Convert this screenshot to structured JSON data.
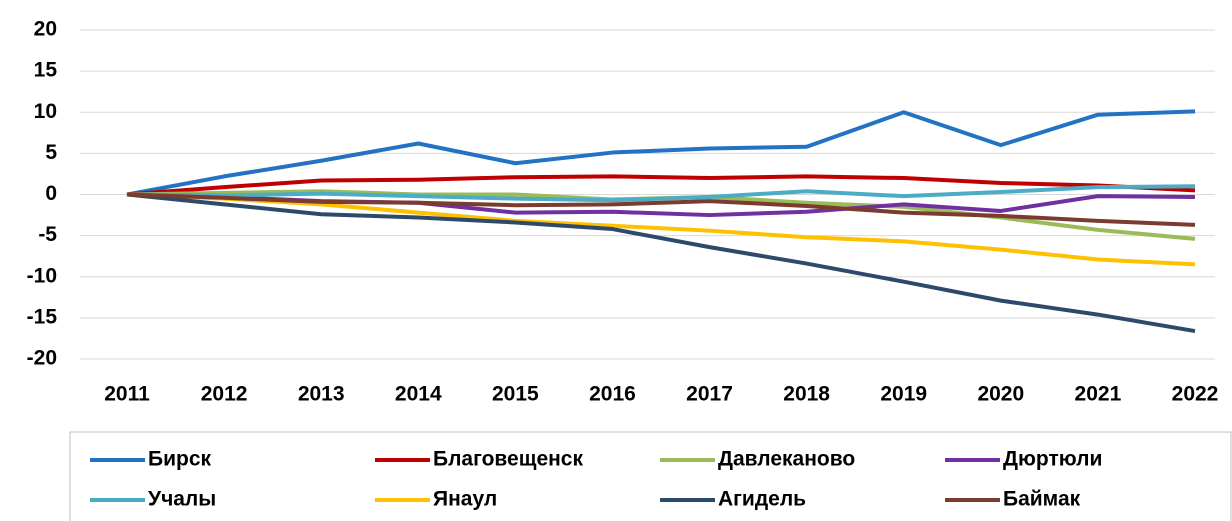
{
  "chart_data": {
    "type": "line",
    "categories": [
      "2011",
      "2012",
      "2013",
      "2014",
      "2015",
      "2016",
      "2017",
      "2018",
      "2019",
      "2020",
      "2021",
      "2022"
    ],
    "series": [
      {
        "name": "Бирск",
        "color": "#2273c3",
        "values": [
          0,
          2.2,
          4.1,
          6.2,
          3.8,
          5.1,
          5.6,
          5.8,
          10.0,
          6.0,
          9.7,
          10.1
        ]
      },
      {
        "name": "Благовещенск",
        "color": "#c00000",
        "values": [
          0,
          0.9,
          1.7,
          1.8,
          2.1,
          2.2,
          2.0,
          2.2,
          2.0,
          1.4,
          1.1,
          0.5
        ]
      },
      {
        "name": "Давлеканово",
        "color": "#9bbb59",
        "values": [
          0,
          0.2,
          0.4,
          0.0,
          0.0,
          -0.6,
          -0.3,
          -1.0,
          -1.5,
          -2.8,
          -4.3,
          -5.4
        ]
      },
      {
        "name": "Дюртюли",
        "color": "#7030a0",
        "values": [
          0,
          -0.3,
          -0.8,
          -1.0,
          -2.2,
          -2.1,
          -2.5,
          -2.1,
          -1.2,
          -2.0,
          -0.2,
          -0.3
        ]
      },
      {
        "name": "Учалы",
        "color": "#4bacc6",
        "values": [
          0,
          -0.1,
          0.1,
          -0.2,
          -0.5,
          -0.7,
          -0.3,
          0.4,
          -0.2,
          0.3,
          0.9,
          1.0
        ]
      },
      {
        "name": "Янаул",
        "color": "#ffc000",
        "values": [
          0,
          -0.5,
          -1.2,
          -2.2,
          -3.2,
          -3.8,
          -4.4,
          -5.2,
          -5.7,
          -6.7,
          -7.9,
          -8.5
        ]
      },
      {
        "name": "Агидель",
        "color": "#2e4a6b",
        "values": [
          0,
          -1.2,
          -2.4,
          -2.8,
          -3.4,
          -4.2,
          -6.4,
          -8.4,
          -10.6,
          -12.9,
          -14.6,
          -16.6
        ]
      },
      {
        "name": "Баймак",
        "color": "#7b3b2e",
        "values": [
          0,
          -0.4,
          -0.9,
          -1.0,
          -1.3,
          -1.2,
          -0.8,
          -1.4,
          -2.2,
          -2.6,
          -3.2,
          -3.7
        ]
      }
    ],
    "ylim": [
      -20,
      20
    ],
    "yticks": [
      -20,
      -15,
      -10,
      -5,
      0,
      5,
      10,
      15,
      20
    ],
    "grid": true
  }
}
